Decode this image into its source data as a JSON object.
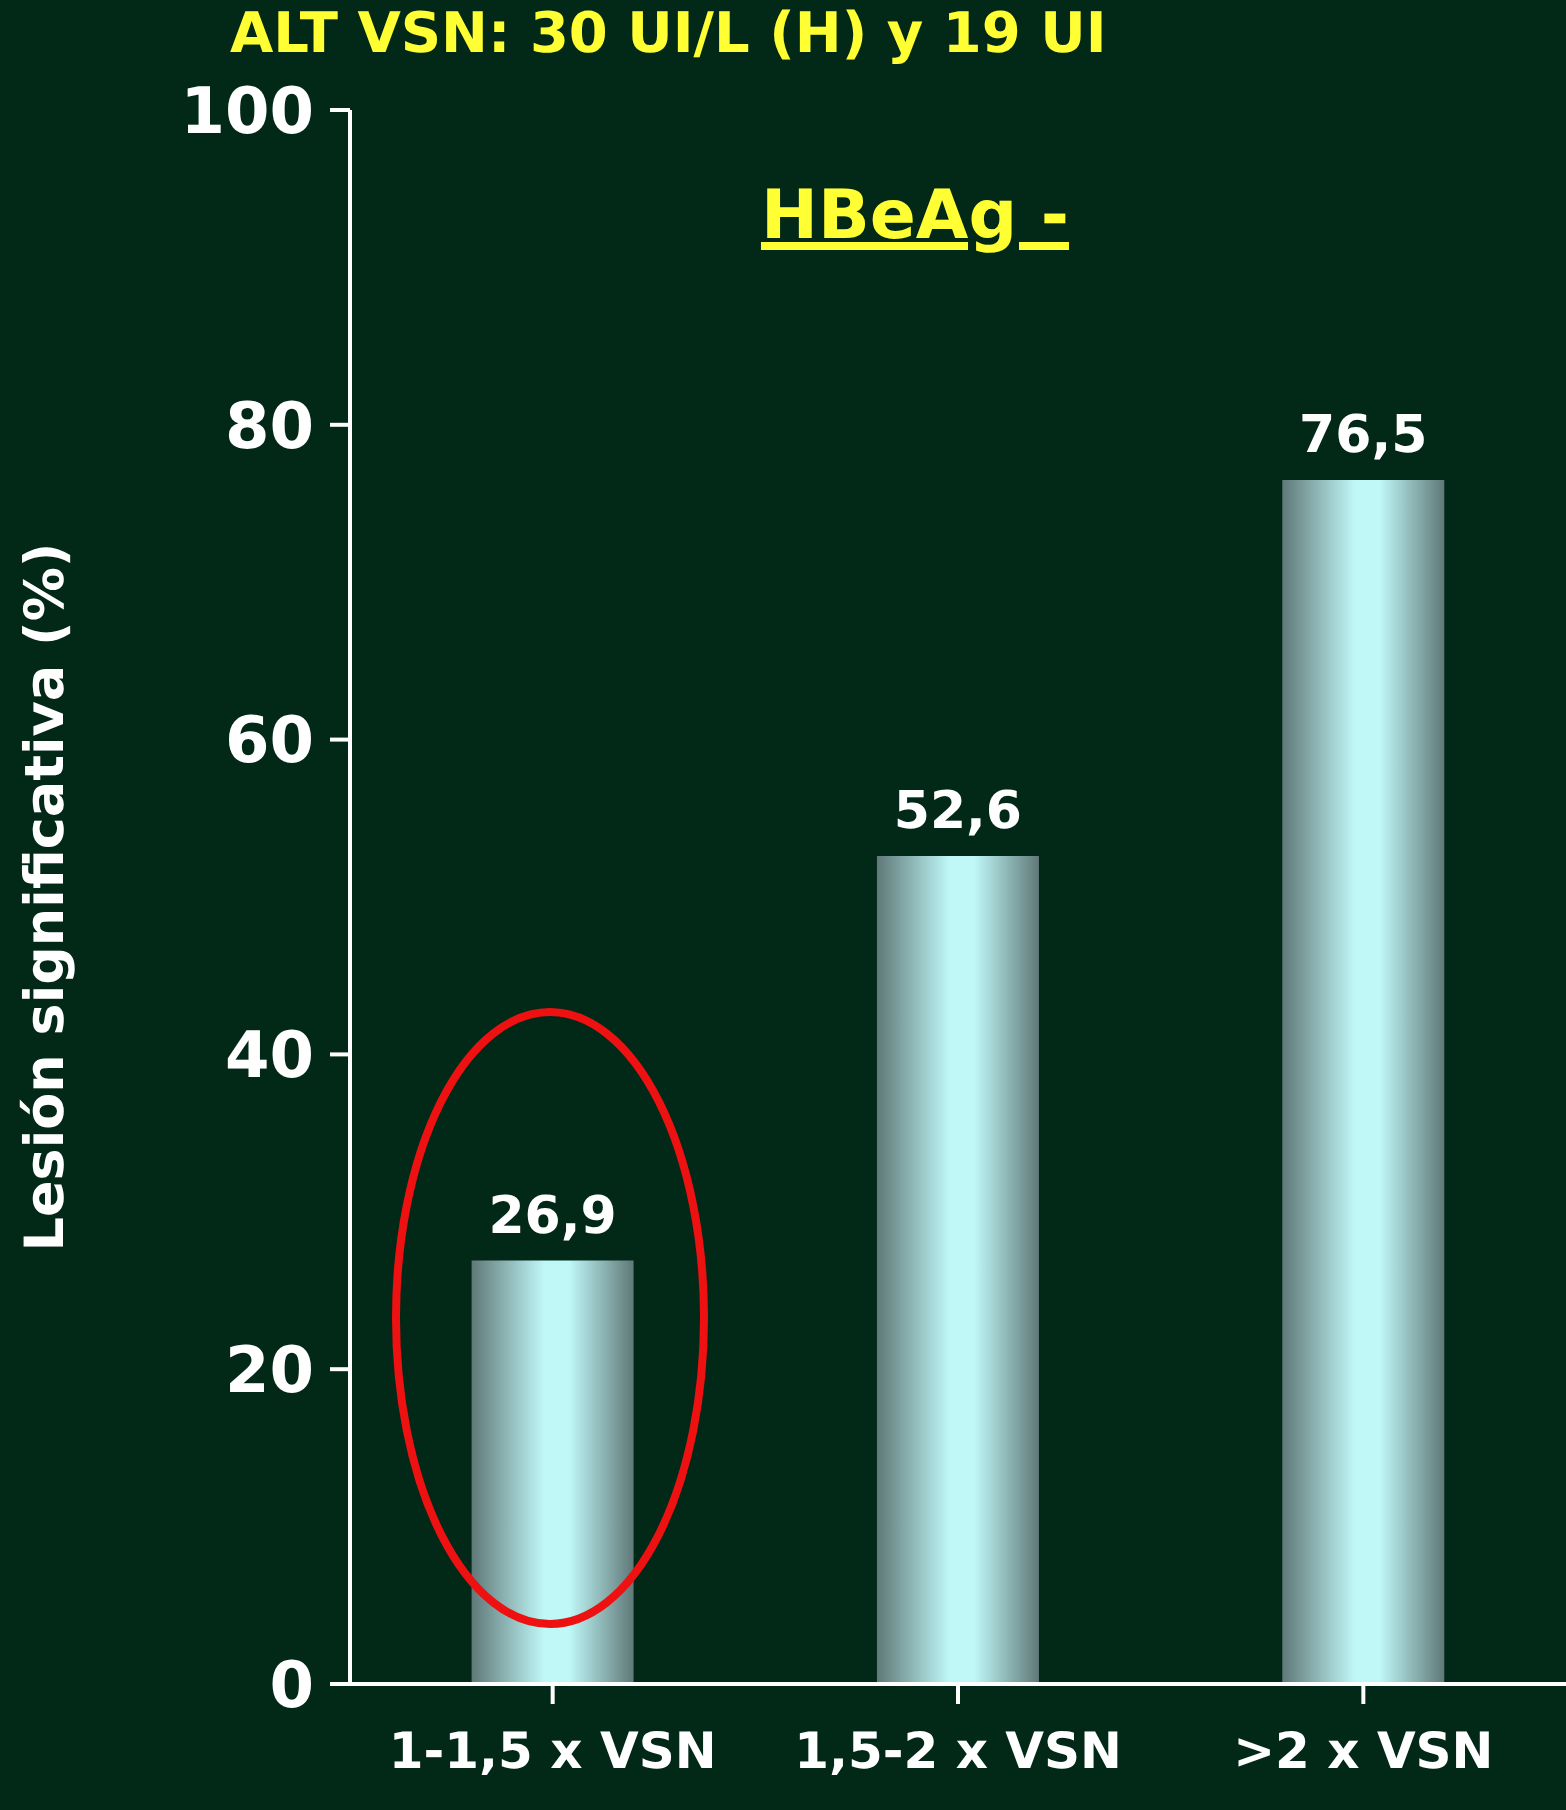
{
  "chart_data": {
    "type": "bar",
    "title": "ALT VSN: 30 UI/L (H) y 19 UI",
    "subtitle": "HBeAg -",
    "ylabel": "Lesión significativa (%)",
    "categories": [
      "1-1,5 x VSN",
      "1,5-2 x VSN",
      ">2 x VSN"
    ],
    "values": [
      26.9,
      52.6,
      76.5
    ],
    "value_labels": [
      "26,9",
      "52,6",
      "76,5"
    ],
    "color": "#c0f8f8",
    "ylim": [
      0,
      100
    ],
    "yticks": [
      0,
      20,
      40,
      60,
      80,
      100
    ],
    "grid": false,
    "legend": false
  }
}
